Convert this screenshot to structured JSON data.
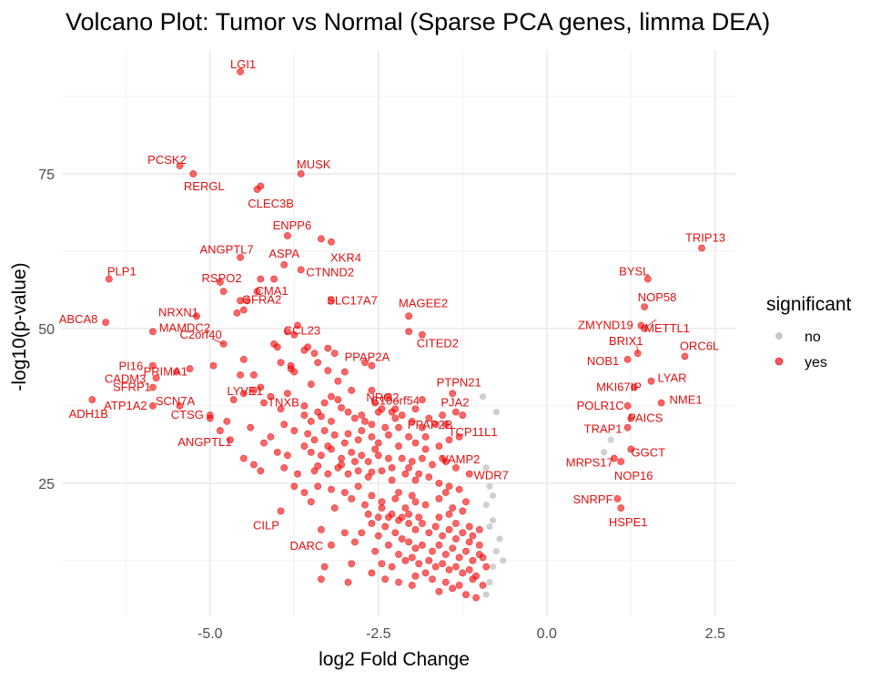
{
  "chart_data": {
    "type": "scatter",
    "title": "Volcano Plot: Tumor vs Normal (Sparse PCA genes, limma DEA)",
    "xlabel": "log2 Fold Change",
    "ylabel": "-log10(p-value)",
    "xlim": [
      -7.2,
      2.8
    ],
    "ylim": [
      3.5,
      95
    ],
    "x_ticks": [
      -5.0,
      -2.5,
      0.0,
      2.5
    ],
    "x_tick_labels": [
      "-5.0",
      "-2.5",
      "0.0",
      "2.5"
    ],
    "y_ticks": [
      25,
      50,
      75
    ],
    "y_tick_labels": [
      "25",
      "50",
      "75"
    ],
    "grid": true,
    "legend": {
      "title": "significant",
      "position": "right",
      "items": [
        {
          "label": "no",
          "color": "#bdbdbd"
        },
        {
          "label": "yes",
          "color": "#ff0000"
        }
      ]
    },
    "colors": {
      "yes": "#ff0000",
      "no": "#c8c8c8",
      "label": "#e01010"
    },
    "labeled_genes": [
      {
        "gene": "LGI1",
        "x": -4.55,
        "y": 91.5
      },
      {
        "gene": "PCSK2",
        "x": -5.45,
        "y": 76.3
      },
      {
        "gene": "RERGL",
        "x": -5.25,
        "y": 75.0
      },
      {
        "gene": "MUSK",
        "x": -3.65,
        "y": 75.0
      },
      {
        "gene": "CLEC3B",
        "x": -4.3,
        "y": 72.5
      },
      {
        "gene": "ENPP6",
        "x": -3.85,
        "y": 65.0
      },
      {
        "gene": "XKR4",
        "x": -3.2,
        "y": 64.0
      },
      {
        "gene": "ANGPTL7",
        "x": -4.55,
        "y": 61.5
      },
      {
        "gene": "ASPA",
        "x": -3.9,
        "y": 60.3
      },
      {
        "gene": "RSPO2",
        "x": -4.8,
        "y": 56.0
      },
      {
        "gene": "CMA1",
        "x": -4.3,
        "y": 56.0
      },
      {
        "gene": "CTNND2",
        "x": -3.65,
        "y": 59.5
      },
      {
        "gene": "PLP1",
        "x": -6.5,
        "y": 58.0
      },
      {
        "gene": "TRIP13",
        "x": 2.3,
        "y": 63.0
      },
      {
        "gene": "BYSL",
        "x": 1.5,
        "y": 58.0
      },
      {
        "gene": "NOP58",
        "x": 1.45,
        "y": 53.5
      },
      {
        "gene": "ABCA8",
        "x": -6.55,
        "y": 51.0
      },
      {
        "gene": "MAMDC2",
        "x": -5.85,
        "y": 49.5
      },
      {
        "gene": "NRXN1",
        "x": -5.2,
        "y": 52.0
      },
      {
        "gene": "GFRA2",
        "x": -4.45,
        "y": 54.5
      },
      {
        "gene": "C2orf40",
        "x": -4.8,
        "y": 47.5
      },
      {
        "gene": "CCL23",
        "x": -3.85,
        "y": 49.5
      },
      {
        "gene": "SLC17A7",
        "x": -3.2,
        "y": 54.5
      },
      {
        "gene": "MAGEE2",
        "x": -2.05,
        "y": 52.0
      },
      {
        "gene": "ZMYND19",
        "x": 1.4,
        "y": 50.5
      },
      {
        "gene": "METTL1",
        "x": 1.45,
        "y": 50.0
      },
      {
        "gene": "PI16",
        "x": -5.85,
        "y": 44.0
      },
      {
        "gene": "PRIMA1",
        "x": -5.5,
        "y": 43.0
      },
      {
        "gene": "LYVE1",
        "x": -4.55,
        "y": 42.5
      },
      {
        "gene": "PPAP2A",
        "x": -2.6,
        "y": 44.0
      },
      {
        "gene": "CITED2",
        "x": -1.85,
        "y": 49.0
      },
      {
        "gene": "BRIX1",
        "x": 1.35,
        "y": 46.0
      },
      {
        "gene": "ORC6L",
        "x": 2.05,
        "y": 45.5
      },
      {
        "gene": "NOB1",
        "x": 1.2,
        "y": 45.0
      },
      {
        "gene": "CADM3",
        "x": -5.8,
        "y": 42.0
      },
      {
        "gene": "SFRP1",
        "x": -5.85,
        "y": 40.5
      },
      {
        "gene": "SCN7A",
        "x": -5.45,
        "y": 37.5
      },
      {
        "gene": "TNXB",
        "x": -4.1,
        "y": 39.0
      },
      {
        "gene": "NRG2",
        "x": -2.6,
        "y": 40.0
      },
      {
        "gene": "PTPN21",
        "x": -1.4,
        "y": 39.5
      },
      {
        "gene": "MKI67IP",
        "x": 1.3,
        "y": 40.5
      },
      {
        "gene": "LYAR",
        "x": 1.55,
        "y": 41.5
      },
      {
        "gene": "ADH1B",
        "x": -6.75,
        "y": 38.5
      },
      {
        "gene": "ATP1A2",
        "x": -5.85,
        "y": 37.5
      },
      {
        "gene": "C10orf54",
        "x": -2.25,
        "y": 37.0
      },
      {
        "gene": "PJA2",
        "x": -1.35,
        "y": 36.5
      },
      {
        "gene": "NME1",
        "x": 1.7,
        "y": 38.0
      },
      {
        "gene": "POLR1C",
        "x": 1.2,
        "y": 37.5
      },
      {
        "gene": "CTSG",
        "x": -5.0,
        "y": 36.0
      },
      {
        "gene": "TCP11L1",
        "x": -1.3,
        "y": 32.5
      },
      {
        "gene": "PAICS",
        "x": 1.25,
        "y": 35.5
      },
      {
        "gene": "TRAP1",
        "x": 1.2,
        "y": 34.0
      },
      {
        "gene": "PPAP2B",
        "x": -1.8,
        "y": 32.5
      },
      {
        "gene": "ANGPTL1",
        "x": -4.85,
        "y": 33.5
      },
      {
        "gene": "VAMP2",
        "x": -1.5,
        "y": 28.5
      },
      {
        "gene": "GGCT",
        "x": 1.25,
        "y": 30.5
      },
      {
        "gene": "MRPS17",
        "x": 1.0,
        "y": 29.0
      },
      {
        "gene": "WDR7",
        "x": -1.15,
        "y": 26.5
      },
      {
        "gene": "NOP16",
        "x": 1.1,
        "y": 28.5
      },
      {
        "gene": "SNRPF",
        "x": 1.05,
        "y": 22.5
      },
      {
        "gene": "HSPE1",
        "x": 1.1,
        "y": 21.0
      },
      {
        "gene": "CILP",
        "x": -3.95,
        "y": 20.5
      },
      {
        "gene": "DARC",
        "x": -3.35,
        "y": 17.5
      }
    ],
    "unlabeled_significant": [
      [
        -4.25,
        73.0
      ],
      [
        -3.35,
        64.5
      ],
      [
        -4.85,
        57.5
      ],
      [
        -4.25,
        58.0
      ],
      [
        -4.05,
        58.0
      ],
      [
        -4.5,
        53.0
      ],
      [
        -4.6,
        52.5
      ],
      [
        -4.55,
        54.5
      ],
      [
        -3.75,
        49.0
      ],
      [
        -3.7,
        50.5
      ],
      [
        -2.05,
        49.5
      ],
      [
        -4.05,
        47.5
      ],
      [
        -4.0,
        47.0
      ],
      [
        -3.6,
        46.5
      ],
      [
        -3.55,
        47.0
      ],
      [
        -3.45,
        46.0
      ],
      [
        -3.25,
        46.8
      ],
      [
        -3.15,
        46.0
      ],
      [
        -4.5,
        45.0
      ],
      [
        -3.95,
        44.5
      ],
      [
        -3.4,
        44.5
      ],
      [
        -3.8,
        43.5
      ],
      [
        -3.75,
        43.0
      ],
      [
        -3.25,
        43.2
      ],
      [
        -3.0,
        43.0
      ],
      [
        -2.7,
        44.5
      ],
      [
        -4.35,
        42.5
      ],
      [
        -4.25,
        40.5
      ],
      [
        -3.1,
        41.5
      ],
      [
        -2.9,
        40.0
      ],
      [
        -4.5,
        39.5
      ],
      [
        -4.35,
        40.0
      ],
      [
        -4.2,
        38.0
      ],
      [
        -3.3,
        38.0
      ],
      [
        -3.2,
        39.0
      ],
      [
        -3.1,
        38.5
      ],
      [
        -3.05,
        37.2
      ],
      [
        -2.55,
        38.0
      ],
      [
        -2.45,
        37.0
      ],
      [
        -2.3,
        36.5
      ],
      [
        -2.15,
        36.0
      ],
      [
        -1.95,
        37.0
      ],
      [
        -1.85,
        38.5
      ],
      [
        -4.65,
        38.5
      ],
      [
        -3.95,
        37.0
      ],
      [
        -3.6,
        36.0
      ],
      [
        -3.5,
        35.0
      ],
      [
        -3.35,
        35.8
      ],
      [
        -3.2,
        35.0
      ],
      [
        -2.85,
        35.5
      ],
      [
        -2.7,
        35.0
      ],
      [
        -2.6,
        34.5
      ],
      [
        -2.4,
        34.0
      ],
      [
        -2.25,
        35.5
      ],
      [
        -2.0,
        35.0
      ],
      [
        -1.85,
        34.0
      ],
      [
        -1.75,
        35.5
      ],
      [
        -1.65,
        34.5
      ],
      [
        -1.55,
        36.0
      ],
      [
        -3.75,
        33.5
      ],
      [
        -3.55,
        33.0
      ],
      [
        -3.45,
        32.0
      ],
      [
        -3.3,
        33.5
      ],
      [
        -3.15,
        32.8
      ],
      [
        -2.95,
        33.0
      ],
      [
        -2.8,
        32.0
      ],
      [
        -2.75,
        33.5
      ],
      [
        -2.6,
        32.5
      ],
      [
        -2.5,
        31.5
      ],
      [
        -2.35,
        32.8
      ],
      [
        -2.2,
        31.0
      ],
      [
        -2.05,
        32.5
      ],
      [
        -1.95,
        31.5
      ],
      [
        -1.8,
        30.5
      ],
      [
        -1.6,
        31.0
      ],
      [
        -1.45,
        32.0
      ],
      [
        -4.2,
        31.5
      ],
      [
        -4.0,
        30.0
      ],
      [
        -3.85,
        29.5
      ],
      [
        -3.6,
        31.0
      ],
      [
        -3.5,
        30.0
      ],
      [
        -3.35,
        29.5
      ],
      [
        -3.2,
        30.5
      ],
      [
        -3.05,
        29.0
      ],
      [
        -2.9,
        30.0
      ],
      [
        -2.75,
        29.5
      ],
      [
        -2.65,
        28.5
      ],
      [
        -2.5,
        29.5
      ],
      [
        -2.35,
        29.0
      ],
      [
        -2.15,
        29.0
      ],
      [
        -2.0,
        28.5
      ],
      [
        -1.85,
        29.0
      ],
      [
        -1.7,
        28.0
      ],
      [
        -1.55,
        29.0
      ],
      [
        -1.35,
        27.5
      ],
      [
        -4.5,
        29.0
      ],
      [
        -4.35,
        28.0
      ],
      [
        -4.25,
        27.0
      ],
      [
        -3.9,
        27.5
      ],
      [
        -3.7,
        26.5
      ],
      [
        -3.45,
        27.0
      ],
      [
        -3.25,
        26.5
      ],
      [
        -3.1,
        27.5
      ],
      [
        -2.95,
        26.5
      ],
      [
        -2.8,
        27.0
      ],
      [
        -2.65,
        26.0
      ],
      [
        -2.45,
        27.0
      ],
      [
        -2.3,
        25.5
      ],
      [
        -2.1,
        26.5
      ],
      [
        -1.95,
        25.5
      ],
      [
        -1.75,
        26.0
      ],
      [
        -1.6,
        25.0
      ],
      [
        -1.45,
        24.5
      ],
      [
        -3.75,
        24.5
      ],
      [
        -3.6,
        23.5
      ],
      [
        -3.4,
        24.5
      ],
      [
        -3.2,
        24.0
      ],
      [
        -3.0,
        23.5
      ],
      [
        -2.8,
        24.5
      ],
      [
        -2.6,
        23.0
      ],
      [
        -2.9,
        22.5
      ],
      [
        -2.7,
        21.5
      ],
      [
        -2.45,
        22.0
      ],
      [
        -2.25,
        22.5
      ],
      [
        -2.1,
        21.0
      ],
      [
        -1.95,
        22.0
      ],
      [
        -1.8,
        21.5
      ],
      [
        -1.6,
        22.5
      ],
      [
        -1.4,
        21.0
      ],
      [
        -1.25,
        20.5
      ],
      [
        -3.5,
        22.0
      ],
      [
        -3.15,
        21.0
      ],
      [
        -2.3,
        20.0
      ],
      [
        -2.15,
        19.5
      ],
      [
        -2.05,
        18.5
      ],
      [
        -1.95,
        17.5
      ],
      [
        -1.85,
        18.5
      ],
      [
        -1.75,
        17.0
      ],
      [
        -1.65,
        18.0
      ],
      [
        -1.55,
        16.5
      ],
      [
        -1.45,
        17.5
      ],
      [
        -1.35,
        16.0
      ],
      [
        -1.25,
        17.0
      ],
      [
        -1.15,
        15.5
      ],
      [
        -2.4,
        18.0
      ],
      [
        -2.25,
        17.0
      ],
      [
        -2.15,
        16.0
      ],
      [
        -2.05,
        15.5
      ],
      [
        -1.95,
        14.5
      ],
      [
        -1.85,
        15.0
      ],
      [
        -1.7,
        14.0
      ],
      [
        -1.6,
        15.0
      ],
      [
        -1.5,
        13.5
      ],
      [
        -1.4,
        14.5
      ],
      [
        -1.3,
        13.0
      ],
      [
        -1.2,
        14.0
      ],
      [
        -1.1,
        12.5
      ],
      [
        -1.0,
        13.5
      ],
      [
        -2.35,
        15.0
      ],
      [
        -2.2,
        13.5
      ],
      [
        -2.1,
        12.5
      ],
      [
        -2.0,
        13.0
      ],
      [
        -1.9,
        12.0
      ],
      [
        -1.75,
        12.5
      ],
      [
        -1.65,
        11.5
      ],
      [
        -1.55,
        12.0
      ],
      [
        -1.45,
        11.0
      ],
      [
        -1.35,
        11.5
      ],
      [
        -1.25,
        10.5
      ],
      [
        -1.15,
        11.0
      ],
      [
        -1.05,
        10.0
      ],
      [
        -2.45,
        12.0
      ],
      [
        -2.3,
        11.5
      ],
      [
        -1.95,
        10.0
      ],
      [
        -1.8,
        10.5
      ],
      [
        -1.7,
        9.5
      ],
      [
        -1.5,
        9.0
      ],
      [
        -1.3,
        8.5
      ],
      [
        -1.1,
        9.5
      ],
      [
        -2.6,
        18.5
      ],
      [
        -2.5,
        16.5
      ],
      [
        -2.55,
        14.0
      ],
      [
        -2.6,
        10.5
      ],
      [
        -2.4,
        9.5
      ],
      [
        -2.2,
        9.0
      ],
      [
        -2.0,
        8.5
      ],
      [
        -1.6,
        7.5
      ],
      [
        -1.4,
        8.0
      ],
      [
        -1.2,
        7.0
      ],
      [
        -1.05,
        6.5
      ],
      [
        -2.75,
        17.0
      ],
      [
        -2.85,
        15.5
      ],
      [
        -2.9,
        12.0
      ],
      [
        -2.05,
        20.0
      ],
      [
        -1.9,
        19.5
      ],
      [
        -2.2,
        19.0
      ],
      [
        -2.35,
        19.5
      ],
      [
        -2.5,
        19.5
      ],
      [
        -2.65,
        20.0
      ],
      [
        -2.45,
        21.0
      ],
      [
        -1.6,
        19.5
      ],
      [
        -1.45,
        20.0
      ],
      [
        -1.35,
        18.5
      ],
      [
        -1.15,
        18.0
      ],
      [
        -1.0,
        17.5
      ],
      [
        -1.1,
        16.5
      ],
      [
        -1.0,
        15.0
      ],
      [
        -0.95,
        13.0
      ],
      [
        -0.9,
        11.5
      ],
      [
        -0.95,
        8.5
      ],
      [
        -3.05,
        28.0
      ],
      [
        -3.25,
        31.0
      ],
      [
        -3.4,
        27.8
      ],
      [
        -2.55,
        30.5
      ],
      [
        -2.3,
        27.5
      ],
      [
        -2.05,
        27.5
      ],
      [
        -1.9,
        26.5
      ],
      [
        -3.0,
        31.5
      ],
      [
        -2.85,
        28.5
      ],
      [
        -2.6,
        26.8
      ],
      [
        -3.9,
        34.5
      ],
      [
        -4.1,
        32.5
      ],
      [
        -3.6,
        37.5
      ],
      [
        -3.4,
        36.5
      ],
      [
        -2.95,
        36.5
      ],
      [
        -2.75,
        36.0
      ],
      [
        -2.5,
        36.5
      ],
      [
        -2.2,
        34.0
      ],
      [
        -1.5,
        34.5
      ],
      [
        -1.25,
        36.0
      ],
      [
        -3.0,
        17.0
      ],
      [
        -3.2,
        15.0
      ],
      [
        -2.95,
        9.0
      ],
      [
        -3.3,
        11.5
      ],
      [
        -2.2,
        23.5
      ],
      [
        -2.0,
        23.0
      ],
      [
        -1.5,
        23.5
      ],
      [
        -1.3,
        24.0
      ],
      [
        -1.2,
        22.0
      ],
      [
        -3.35,
        9.5
      ],
      [
        -4.7,
        32.0
      ],
      [
        -4.75,
        35.0
      ],
      [
        -4.4,
        34.0
      ],
      [
        -5.0,
        35.5
      ],
      [
        -5.3,
        43.5
      ],
      [
        -4.95,
        44.0
      ],
      [
        -3.8,
        44.0
      ],
      [
        -3.5,
        41.0
      ],
      [
        -3.85,
        39.5
      ],
      [
        -2.35,
        39.0
      ]
    ],
    "not_significant": [
      [
        -0.95,
        39.0
      ],
      [
        -0.75,
        36.5
      ],
      [
        -0.9,
        27.5
      ],
      [
        -0.85,
        24.5
      ],
      [
        -0.8,
        23.0
      ],
      [
        -0.9,
        21.5
      ],
      [
        -0.8,
        19.0
      ],
      [
        -0.85,
        18.0
      ],
      [
        -0.7,
        16.0
      ],
      [
        -0.75,
        14.0
      ],
      [
        -0.65,
        12.5
      ],
      [
        -0.8,
        11.5
      ],
      [
        -0.85,
        9.0
      ],
      [
        -0.9,
        7.0
      ],
      [
        0.95,
        32.0
      ],
      [
        0.85,
        30.0
      ]
    ]
  }
}
